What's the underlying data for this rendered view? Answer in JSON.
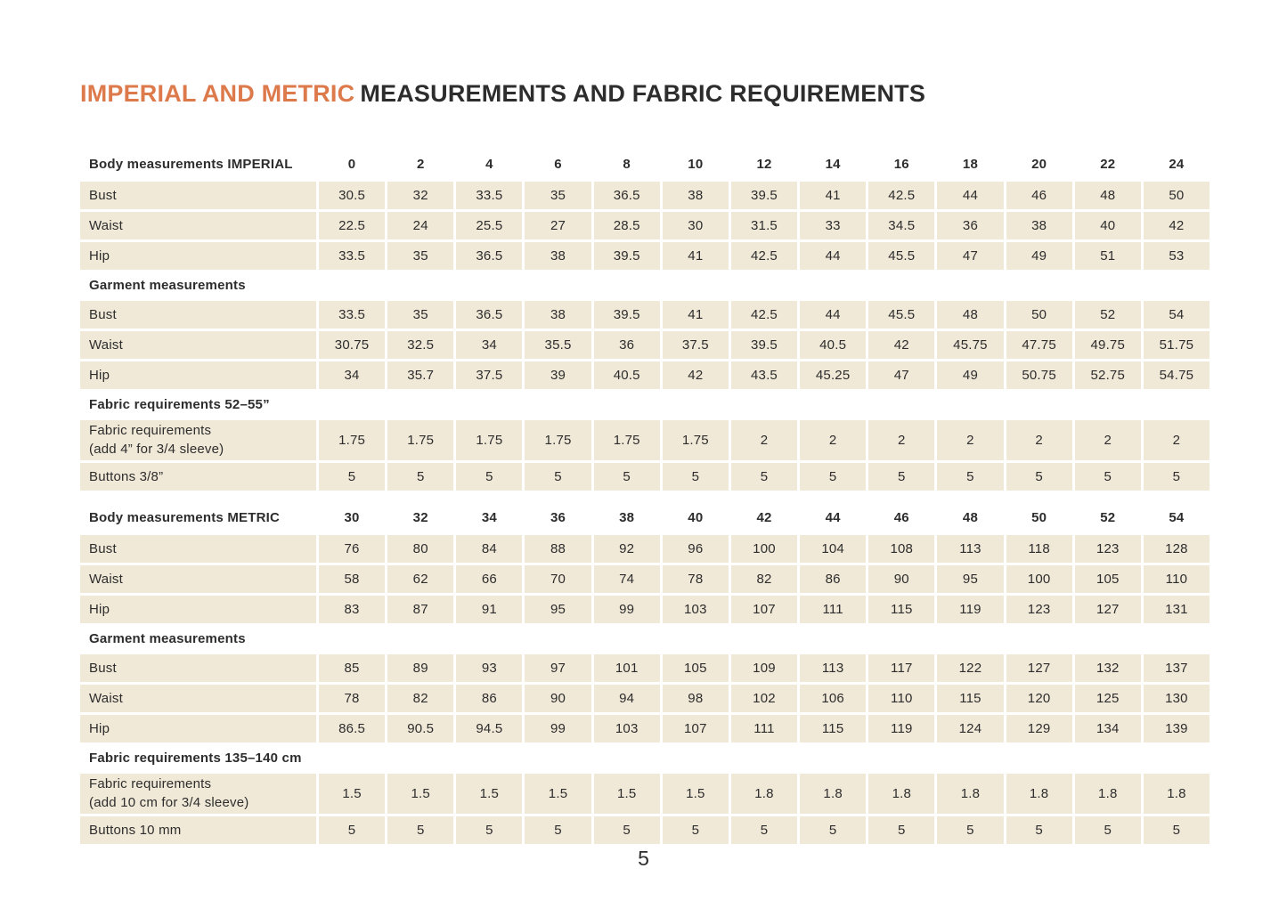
{
  "page": {
    "title_highlight": "IMPERIAL AND METRIC",
    "title_rest": "MEASUREMENTS AND FABRIC REQUIREMENTS",
    "page_number": "5"
  },
  "colors": {
    "accent": "#dd7a4b",
    "cell_bg": "#f1e9d8",
    "text": "#2d2d2d"
  },
  "table": {
    "rows": [
      {
        "type": "header",
        "label": "Body measurements IMPERIAL",
        "values": [
          "0",
          "2",
          "4",
          "6",
          "8",
          "10",
          "12",
          "14",
          "16",
          "18",
          "20",
          "22",
          "24"
        ]
      },
      {
        "type": "data",
        "label": "Bust",
        "values": [
          "30.5",
          "32",
          "33.5",
          "35",
          "36.5",
          "38",
          "39.5",
          "41",
          "42.5",
          "44",
          "46",
          "48",
          "50"
        ]
      },
      {
        "type": "data",
        "label": "Waist",
        "values": [
          "22.5",
          "24",
          "25.5",
          "27",
          "28.5",
          "30",
          "31.5",
          "33",
          "34.5",
          "36",
          "38",
          "40",
          "42"
        ]
      },
      {
        "type": "data",
        "label": "Hip",
        "values": [
          "33.5",
          "35",
          "36.5",
          "38",
          "39.5",
          "41",
          "42.5",
          "44",
          "45.5",
          "47",
          "49",
          "51",
          "53"
        ]
      },
      {
        "type": "section",
        "label": "Garment measurements"
      },
      {
        "type": "data",
        "label": "Bust",
        "values": [
          "33.5",
          "35",
          "36.5",
          "38",
          "39.5",
          "41",
          "42.5",
          "44",
          "45.5",
          "48",
          "50",
          "52",
          "54"
        ]
      },
      {
        "type": "data",
        "label": "Waist",
        "values": [
          "30.75",
          "32.5",
          "34",
          "35.5",
          "36",
          "37.5",
          "39.5",
          "40.5",
          "42",
          "45.75",
          "47.75",
          "49.75",
          "51.75"
        ]
      },
      {
        "type": "data",
        "label": "Hip",
        "values": [
          "34",
          "35.7",
          "37.5",
          "39",
          "40.5",
          "42",
          "43.5",
          "45.25",
          "47",
          "49",
          "50.75",
          "52.75",
          "54.75"
        ]
      },
      {
        "type": "section",
        "label": "Fabric requirements 52–55”"
      },
      {
        "type": "data2",
        "label": "Fabric requirements",
        "sublabel": "(add 4” for 3/4 sleeve)",
        "values": [
          "1.75",
          "1.75",
          "1.75",
          "1.75",
          "1.75",
          "1.75",
          "2",
          "2",
          "2",
          "2",
          "2",
          "2",
          "2"
        ]
      },
      {
        "type": "data",
        "label": "Buttons 3/8”",
        "values": [
          "5",
          "5",
          "5",
          "5",
          "5",
          "5",
          "5",
          "5",
          "5",
          "5",
          "5",
          "5",
          "5"
        ]
      },
      {
        "type": "spacer"
      },
      {
        "type": "header",
        "label": "Body measurements METRIC",
        "values": [
          "30",
          "32",
          "34",
          "36",
          "38",
          "40",
          "42",
          "44",
          "46",
          "48",
          "50",
          "52",
          "54"
        ]
      },
      {
        "type": "data",
        "label": "Bust",
        "values": [
          "76",
          "80",
          "84",
          "88",
          "92",
          "96",
          "100",
          "104",
          "108",
          "113",
          "118",
          "123",
          "128"
        ]
      },
      {
        "type": "data",
        "label": "Waist",
        "values": [
          "58",
          "62",
          "66",
          "70",
          "74",
          "78",
          "82",
          "86",
          "90",
          "95",
          "100",
          "105",
          "110"
        ]
      },
      {
        "type": "data",
        "label": "Hip",
        "values": [
          "83",
          "87",
          "91",
          "95",
          "99",
          "103",
          "107",
          "111",
          "115",
          "119",
          "123",
          "127",
          "131"
        ]
      },
      {
        "type": "section",
        "label": "Garment measurements"
      },
      {
        "type": "data",
        "label": "Bust",
        "values": [
          "85",
          "89",
          "93",
          "97",
          "101",
          "105",
          "109",
          "113",
          "117",
          "122",
          "127",
          "132",
          "137"
        ]
      },
      {
        "type": "data",
        "label": "Waist",
        "values": [
          "78",
          "82",
          "86",
          "90",
          "94",
          "98",
          "102",
          "106",
          "110",
          "115",
          "120",
          "125",
          "130"
        ]
      },
      {
        "type": "data",
        "label": "Hip",
        "values": [
          "86.5",
          "90.5",
          "94.5",
          "99",
          "103",
          "107",
          "111",
          "115",
          "119",
          "124",
          "129",
          "134",
          "139"
        ]
      },
      {
        "type": "section",
        "label": "Fabric requirements 135–140 cm"
      },
      {
        "type": "data2",
        "label": "Fabric requirements",
        "sublabel": "(add 10 cm for 3/4 sleeve)",
        "values": [
          "1.5",
          "1.5",
          "1.5",
          "1.5",
          "1.5",
          "1.5",
          "1.8",
          "1.8",
          "1.8",
          "1.8",
          "1.8",
          "1.8",
          "1.8"
        ]
      },
      {
        "type": "data",
        "label": "Buttons 10 mm",
        "values": [
          "5",
          "5",
          "5",
          "5",
          "5",
          "5",
          "5",
          "5",
          "5",
          "5",
          "5",
          "5",
          "5"
        ]
      }
    ]
  }
}
